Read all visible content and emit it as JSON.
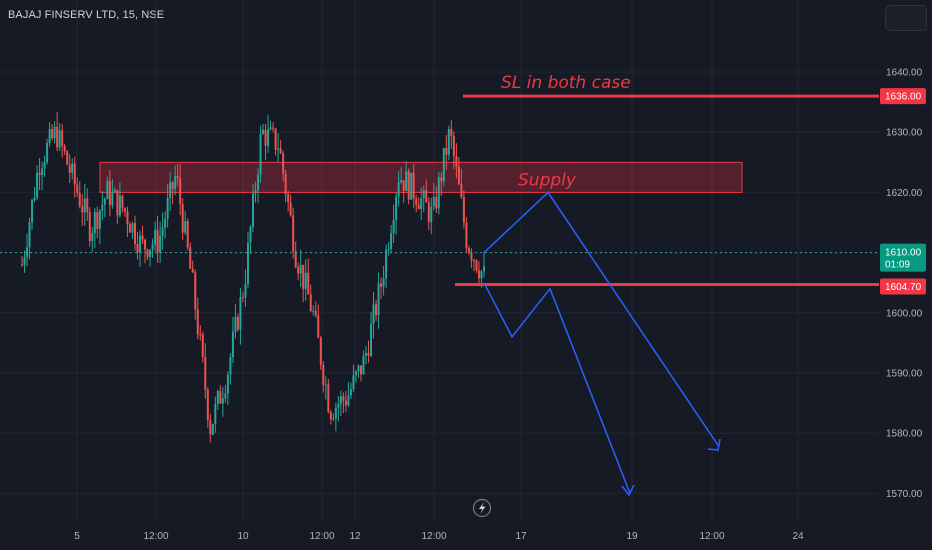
{
  "header": {
    "symbol_title": "BAJAJ FINSERV LTD, 15, NSE"
  },
  "colors": {
    "background": "#161a25",
    "grid": "#232632",
    "up": "#26a69a",
    "down": "#ef5350",
    "annotation_red": "#f23645",
    "projection_blue": "#2962ff",
    "axis_text": "#b2b5be"
  },
  "chart_data": {
    "type": "candlestick",
    "title": "BAJAJ FINSERV LTD, 15, NSE",
    "ylim": [
      1566,
      1648
    ],
    "y_ticks": [
      1570,
      1580,
      1590,
      1600,
      1610,
      1620,
      1630,
      1640
    ],
    "y_tick_labels": [
      "1570.00",
      "1580.00",
      "1590.00",
      "1600.00",
      "1610.00",
      "1620.00",
      "1630.00",
      "1640.00"
    ],
    "x_tick_labels": [
      "5",
      "12:00",
      "10",
      "12:00",
      "12",
      "12:00",
      "17",
      "19",
      "12:00",
      "24"
    ],
    "grid": true,
    "last_price": 1610.0,
    "last_price_label": "1610.00",
    "countdown_label": "01:09",
    "series_anchor_prices": [
      1608,
      1625,
      1630,
      1622,
      1614,
      1620,
      1617,
      1611,
      1612,
      1623,
      1604,
      1581,
      1590,
      1605,
      1630,
      1628,
      1610,
      1600,
      1584,
      1586,
      1592,
      1605,
      1623,
      1620,
      1616,
      1630,
      1612,
      1606
    ],
    "annotations": {
      "sl_line": {
        "price": 1636.0,
        "label": "1636.00",
        "text": "SL in both case"
      },
      "support_line": {
        "price": 1604.7,
        "label": "1604.70"
      },
      "supply_zone": {
        "top": 1625,
        "bottom": 1620,
        "text": "Supply"
      },
      "projection_path_1": [
        [
          1612,
          1610
        ],
        [
          1620,
          1620
        ],
        [
          1640,
          1578
        ]
      ],
      "projection_path_2": [
        [
          1612,
          1605
        ],
        [
          1616,
          1596
        ],
        [
          1622,
          1604
        ],
        [
          1632,
          1570
        ]
      ]
    }
  }
}
